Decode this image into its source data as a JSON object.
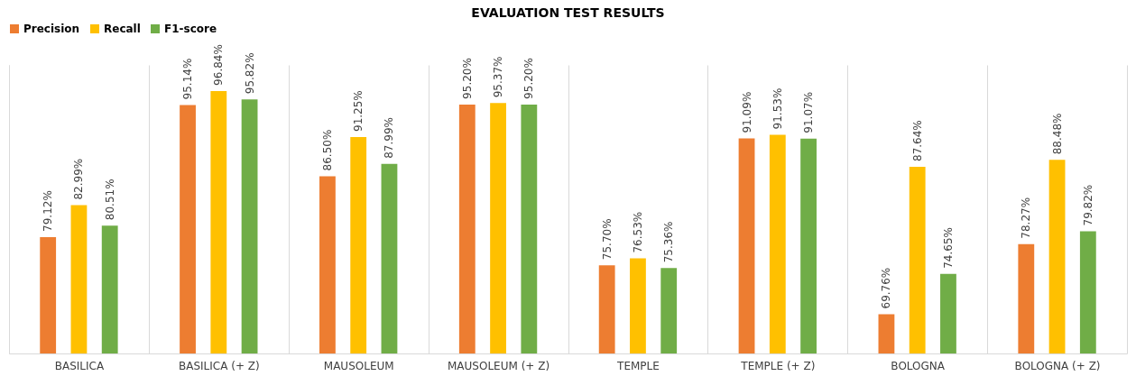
{
  "chart_data": {
    "type": "bar",
    "title": "EVALUATION TEST RESULTS",
    "categories": [
      "BASILICA",
      "BASILICA (+ Z)",
      "MAUSOLEUM",
      "MAUSOLEUM (+ Z)",
      "TEMPLE",
      "TEMPLE (+ Z)",
      "BOLOGNA",
      "BOLOGNA (+ Z)"
    ],
    "series": [
      {
        "name": "Precision",
        "color": "#ed7d31",
        "values": [
          79.12,
          95.14,
          86.5,
          95.2,
          75.7,
          91.09,
          69.76,
          78.27
        ],
        "value_labels": [
          "79.12%",
          "95.14%",
          "86.50%",
          "95.20%",
          "75.70%",
          "91.09%",
          "69.76%",
          "78.27%"
        ]
      },
      {
        "name": "Recall",
        "color": "#ffc000",
        "values": [
          82.99,
          96.84,
          91.25,
          95.37,
          76.53,
          91.53,
          87.64,
          88.48
        ],
        "value_labels": [
          "82.99%",
          "96.84%",
          "91.25%",
          "95.37%",
          "76.53%",
          "91.53%",
          "87.64%",
          "88.48%"
        ]
      },
      {
        "name": "F1-score",
        "color": "#70ad47",
        "values": [
          80.51,
          95.82,
          87.99,
          95.2,
          75.36,
          91.07,
          74.65,
          79.82
        ],
        "value_labels": [
          "80.51%",
          "95.82%",
          "87.99%",
          "95.20%",
          "75.36%",
          "91.07%",
          "74.65%",
          "79.82%"
        ]
      }
    ],
    "ylim": [
      65,
      100
    ],
    "tick_labels": "x",
    "grid": "x",
    "legend": "top"
  }
}
